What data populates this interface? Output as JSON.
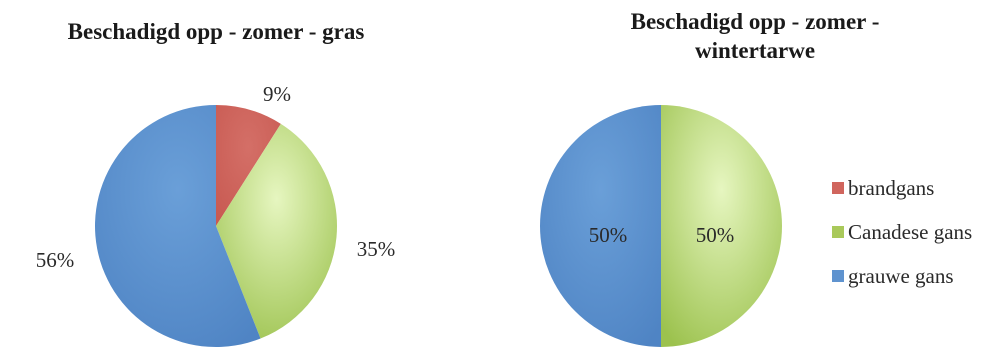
{
  "chart_data": [
    {
      "type": "pie",
      "title": "Beschadigd opp - zomer - gras",
      "series": [
        {
          "name": "brandgans",
          "value": 9,
          "label": "9%",
          "color": "#d0655d"
        },
        {
          "name": "Canadese gans",
          "value": 35,
          "label": "35%",
          "color": "#b9d76c"
        },
        {
          "name": "grauwe gans",
          "value": 56,
          "label": "56%",
          "color": "#5f93cf"
        }
      ]
    },
    {
      "type": "pie",
      "title": "Beschadigd opp - zomer - wintertarwe",
      "series": [
        {
          "name": "brandgans",
          "value": 0,
          "label": "",
          "color": "#d0655d"
        },
        {
          "name": "Canadese gans",
          "value": 50,
          "label": "50%",
          "color": "#b9d76c"
        },
        {
          "name": "grauwe gans",
          "value": 50,
          "label": "50%",
          "color": "#5f93cf"
        }
      ],
      "legend": {
        "position": "right",
        "items": [
          {
            "name": "brandgans",
            "color": "#d0655d"
          },
          {
            "name": "Canadese gans",
            "color": "#a9c95a"
          },
          {
            "name": "grauwe gans",
            "color": "#5f93cf"
          }
        ]
      }
    }
  ]
}
